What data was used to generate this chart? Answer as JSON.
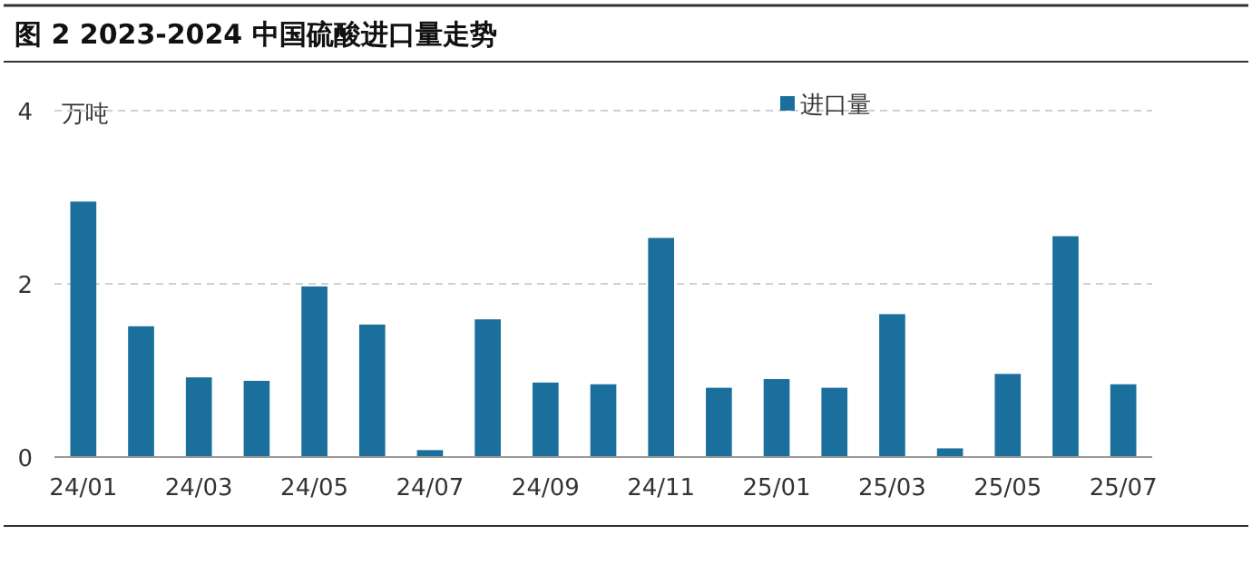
{
  "chart_data": {
    "type": "bar",
    "title": "图 2 2023-2024 中国硫酸进口量走势",
    "ylabel": "万吨",
    "categories": [
      "24/01",
      null,
      "24/03",
      null,
      "24/05",
      null,
      "24/07",
      null,
      "24/09",
      null,
      "24/11",
      null,
      "25/01",
      null,
      "25/03",
      null,
      "25/05",
      null,
      "25/07"
    ],
    "series": [
      {
        "name": "进口量",
        "color": "#1a6f9c",
        "values": [
          2.95,
          1.51,
          0.92,
          0.88,
          1.97,
          1.53,
          0.08,
          1.59,
          0.86,
          0.84,
          2.53,
          0.8,
          0.9,
          0.8,
          1.65,
          0.1,
          0.96,
          2.55,
          0.84
        ]
      }
    ],
    "ylim": [
      0,
      4
    ],
    "yticks": [
      0,
      2,
      4
    ],
    "grid": "y",
    "legend": "top"
  }
}
